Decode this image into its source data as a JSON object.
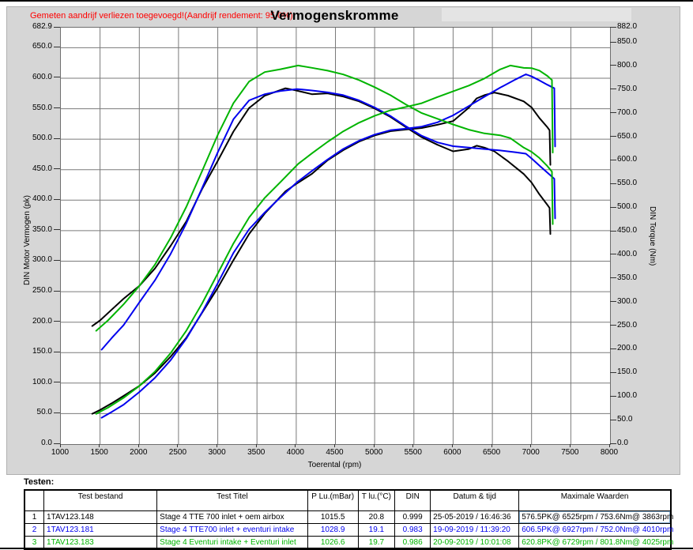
{
  "header": {
    "notice": "Gemeten aandrijf verliezen toegevoegd!(Aandrijf rendement: 95.0%)",
    "notice_color": "#ff0000"
  },
  "chart_data": {
    "type": "line",
    "title": "Vermogenskromme",
    "grid": {
      "vertical_step_rpm": 500,
      "horizontal_step_pk": 50,
      "color": "#7a7a7a"
    },
    "axes": {
      "x": {
        "label": "Toerental (rpm)",
        "min": 1000,
        "max": 8000,
        "ticks": [
          "1000",
          "1500",
          "2000",
          "2500",
          "3000",
          "3500",
          "4000",
          "4500",
          "5000",
          "5500",
          "6000",
          "6500",
          "7000",
          "7500",
          "8000"
        ]
      },
      "left": {
        "label": "DIN Motor Vermogen (pk)",
        "min": 0,
        "max": 682.9,
        "ticks": [
          "682.9",
          "650.0",
          "600.0",
          "550.0",
          "500.0",
          "450.0",
          "400.0",
          "350.0",
          "300.0",
          "250.0",
          "200.0",
          "150.0",
          "100.0",
          "50.0",
          "0.0"
        ]
      },
      "right": {
        "label": "DIN Torque (Nm)",
        "min": 0,
        "max": 882.0,
        "ticks": [
          "882.0",
          "850.0",
          "800.0",
          "750.0",
          "700.0",
          "650.0",
          "600.0",
          "550.0",
          "500.0",
          "450.0",
          "400.0",
          "350.0",
          "300.0",
          "250.0",
          "200.0",
          "150.0",
          "100.0",
          "50.0",
          "0.0"
        ]
      }
    },
    "series": [
      {
        "name": "Test 1 power (pk) — Stage 4 TTE 700 inlet + oem airbox",
        "slug": "test1-power-curve",
        "color": "#000000",
        "axis": "left",
        "points": [
          [
            1400,
            49.8
          ],
          [
            1500,
            56.0
          ],
          [
            1650,
            67.0
          ],
          [
            1800,
            79.0
          ],
          [
            2000,
            95.4
          ],
          [
            2200,
            116.5
          ],
          [
            2400,
            143.5
          ],
          [
            2600,
            174.7
          ],
          [
            2800,
            215.2
          ],
          [
            3000,
            256.3
          ],
          [
            3200,
            301.6
          ],
          [
            3400,
            344.7
          ],
          [
            3600,
            378.3
          ],
          [
            3863,
            414.5
          ],
          [
            4000,
            426.7
          ],
          [
            4200,
            443.2
          ],
          [
            4400,
            465.4
          ],
          [
            4600,
            482.1
          ],
          [
            4800,
            496.1
          ],
          [
            5000,
            506.2
          ],
          [
            5200,
            513.2
          ],
          [
            5400,
            515.9
          ],
          [
            5600,
            518.3
          ],
          [
            5800,
            523.6
          ],
          [
            6000,
            529.7
          ],
          [
            6200,
            551.8
          ],
          [
            6300,
            566.9
          ],
          [
            6400,
            572.2
          ],
          [
            6525,
            576.5
          ],
          [
            6700,
            571.4
          ],
          [
            6900,
            562.0
          ],
          [
            7000,
            552.2
          ],
          [
            7100,
            534.8
          ],
          [
            7200,
            519.8
          ],
          [
            7230,
            514.7
          ],
          [
            7240,
            458.0
          ]
        ]
      },
      {
        "name": "Test 1 torque (Nm) — Stage 4 TTE 700 inlet + oem airbox",
        "slug": "test1-torque-curve",
        "color": "#000000",
        "axis": "right",
        "points": [
          [
            1400,
            250
          ],
          [
            1500,
            262
          ],
          [
            1650,
            285
          ],
          [
            1800,
            308
          ],
          [
            2000,
            335
          ],
          [
            2200,
            372
          ],
          [
            2400,
            420
          ],
          [
            2600,
            472
          ],
          [
            2800,
            540
          ],
          [
            3000,
            600
          ],
          [
            3200,
            662
          ],
          [
            3400,
            712
          ],
          [
            3600,
            738
          ],
          [
            3863,
            753.6
          ],
          [
            4000,
            749
          ],
          [
            4200,
            741
          ],
          [
            4400,
            743
          ],
          [
            4600,
            736
          ],
          [
            4800,
            726
          ],
          [
            5000,
            711
          ],
          [
            5200,
            693
          ],
          [
            5400,
            671
          ],
          [
            5600,
            650
          ],
          [
            5800,
            634
          ],
          [
            6000,
            620
          ],
          [
            6200,
            625
          ],
          [
            6300,
            632
          ],
          [
            6400,
            628
          ],
          [
            6525,
            620
          ],
          [
            6700,
            599
          ],
          [
            6900,
            572
          ],
          [
            7000,
            554
          ],
          [
            7100,
            529
          ],
          [
            7200,
            507
          ],
          [
            7230,
            500
          ],
          [
            7240,
            445
          ]
        ]
      },
      {
        "name": "Test 2 power (pk) — Stage 4 TTE700 inlet + eventuri intake",
        "slug": "test2-power-curve",
        "color": "#0000ee",
        "axis": "left",
        "points": [
          [
            1520,
            43.3
          ],
          [
            1650,
            52.9
          ],
          [
            1800,
            64.6
          ],
          [
            2000,
            85.4
          ],
          [
            2200,
            108.7
          ],
          [
            2400,
            137.7
          ],
          [
            2600,
            173.3
          ],
          [
            2800,
            216.0
          ],
          [
            3000,
            264.0
          ],
          [
            3200,
            313.5
          ],
          [
            3400,
            352.4
          ],
          [
            3600,
            379.9
          ],
          [
            3800,
            404.8
          ],
          [
            4010,
            429.4
          ],
          [
            4200,
            448.0
          ],
          [
            4400,
            466.8
          ],
          [
            4600,
            484.0
          ],
          [
            4800,
            497.5
          ],
          [
            5000,
            507.6
          ],
          [
            5200,
            514.7
          ],
          [
            5400,
            517.4
          ],
          [
            5600,
            520.7
          ],
          [
            5800,
            527.7
          ],
          [
            6000,
            539.1
          ],
          [
            6200,
            554.4
          ],
          [
            6400,
            569.6
          ],
          [
            6600,
            584.5
          ],
          [
            6800,
            598.3
          ],
          [
            6927,
            606.5
          ],
          [
            7000,
            603.0
          ],
          [
            7100,
            596.5
          ],
          [
            7200,
            589.4
          ],
          [
            7290,
            583.5
          ],
          [
            7300,
            488.0
          ]
        ]
      },
      {
        "name": "Test 2 torque (Nm) — Stage 4 TTE700 inlet + eventuri intake",
        "slug": "test2-torque-curve",
        "color": "#0000ee",
        "axis": "right",
        "points": [
          [
            1520,
            200
          ],
          [
            1650,
            225
          ],
          [
            1800,
            252
          ],
          [
            2000,
            300
          ],
          [
            2200,
            347
          ],
          [
            2400,
            403
          ],
          [
            2600,
            468
          ],
          [
            2800,
            542
          ],
          [
            3000,
            618
          ],
          [
            3200,
            688
          ],
          [
            3400,
            728
          ],
          [
            3600,
            741
          ],
          [
            3800,
            748
          ],
          [
            4010,
            752
          ],
          [
            4200,
            749
          ],
          [
            4400,
            745
          ],
          [
            4600,
            739
          ],
          [
            4800,
            728
          ],
          [
            5000,
            713
          ],
          [
            5200,
            695
          ],
          [
            5400,
            673
          ],
          [
            5600,
            653
          ],
          [
            5800,
            639
          ],
          [
            6000,
            631
          ],
          [
            6200,
            628
          ],
          [
            6400,
            625
          ],
          [
            6600,
            622
          ],
          [
            6800,
            618
          ],
          [
            6927,
            615
          ],
          [
            7000,
            605
          ],
          [
            7100,
            590
          ],
          [
            7200,
            575
          ],
          [
            7290,
            562
          ],
          [
            7300,
            478
          ]
        ]
      },
      {
        "name": "Test 3 power (pk) — Stage 4 Eventuri intake + Eventuri inlet",
        "slug": "test3-power-curve",
        "color": "#00b400",
        "axis": "left",
        "points": [
          [
            1450,
            49.6
          ],
          [
            1600,
            59.7
          ],
          [
            1800,
            75.9
          ],
          [
            2000,
            95.4
          ],
          [
            2200,
            119.0
          ],
          [
            2400,
            149.3
          ],
          [
            2600,
            186.2
          ],
          [
            2800,
            230.5
          ],
          [
            3000,
            279.8
          ],
          [
            3200,
            329.0
          ],
          [
            3400,
            371.8
          ],
          [
            3600,
            403.9
          ],
          [
            3800,
            429.8
          ],
          [
            4025,
            459.5
          ],
          [
            4200,
            476.7
          ],
          [
            4400,
            495.6
          ],
          [
            4600,
            512.9
          ],
          [
            4800,
            527.0
          ],
          [
            5000,
            538.3
          ],
          [
            5200,
            547.3
          ],
          [
            5400,
            552.9
          ],
          [
            5600,
            559.0
          ],
          [
            5800,
            569.1
          ],
          [
            6000,
            578.4
          ],
          [
            6200,
            587.9
          ],
          [
            6400,
            599.6
          ],
          [
            6600,
            614.5
          ],
          [
            6729,
            620.8
          ],
          [
            6900,
            617.0
          ],
          [
            7000,
            616.5
          ],
          [
            7100,
            612.5
          ],
          [
            7200,
            603.8
          ],
          [
            7260,
            597.0
          ],
          [
            7270,
            478.0
          ]
        ]
      },
      {
        "name": "Test 3 torque (Nm) — Stage 4 Eventuri intake + Eventuri inlet",
        "slug": "test3-torque-curve",
        "color": "#00b400",
        "axis": "right",
        "points": [
          [
            1450,
            240
          ],
          [
            1600,
            262
          ],
          [
            1800,
            296
          ],
          [
            2000,
            335
          ],
          [
            2200,
            380
          ],
          [
            2400,
            437
          ],
          [
            2600,
            503
          ],
          [
            2800,
            578
          ],
          [
            3000,
            655
          ],
          [
            3200,
            722
          ],
          [
            3400,
            768
          ],
          [
            3600,
            788
          ],
          [
            3800,
            794
          ],
          [
            4025,
            801.8
          ],
          [
            4200,
            797
          ],
          [
            4400,
            791
          ],
          [
            4600,
            783
          ],
          [
            4800,
            771
          ],
          [
            5000,
            756
          ],
          [
            5200,
            739
          ],
          [
            5400,
            719
          ],
          [
            5600,
            701
          ],
          [
            5800,
            689
          ],
          [
            6000,
            677
          ],
          [
            6200,
            666
          ],
          [
            6400,
            658
          ],
          [
            6600,
            654
          ],
          [
            6729,
            648
          ],
          [
            6900,
            628
          ],
          [
            7000,
            619
          ],
          [
            7100,
            606
          ],
          [
            7200,
            589
          ],
          [
            7260,
            577
          ],
          [
            7270,
            466
          ]
        ]
      }
    ]
  },
  "table": {
    "caption": "Testen:",
    "headers": [
      "",
      "Test bestand",
      "Test Titel",
      "P Lu.(mBar)",
      "T lu.(°C)",
      "DIN",
      "Datum & tijd",
      "Maximale Waarden"
    ],
    "rows": [
      {
        "num": "1",
        "file": "1TAV123.148",
        "title": "Stage 4 TTE 700  inlet + oem airbox",
        "p": "1015.5",
        "t": "20.8",
        "din": "0.999",
        "datetime": "25-05-2019 / 16:46:36",
        "max": "576.5PK@ 6525rpm / 753.6Nm@ 3863rpm",
        "color": "#000000",
        "selected": true
      },
      {
        "num": "2",
        "file": "1TAV123.181",
        "title": "Stage 4 TTE700 inlet + eventuri intake",
        "p": "1028.9",
        "t": "19.1",
        "din": "0.983",
        "datetime": "19-09-2019 / 11:39:20",
        "max": "606.5PK@ 6927rpm / 752.0Nm@ 4010rpm",
        "color": "#0000ee",
        "selected": false
      },
      {
        "num": "3",
        "file": "1TAV123.183",
        "title": "Stage 4 Eventuri intake + Eventuri inlet",
        "p": "1026.6",
        "t": "19.7",
        "din": "0.986",
        "datetime": "20-09-2019 / 10:01:08",
        "max": "620.8PK@ 6729rpm / 801.8Nm@ 4025rpm",
        "color": "#00b400",
        "selected": false
      }
    ]
  }
}
